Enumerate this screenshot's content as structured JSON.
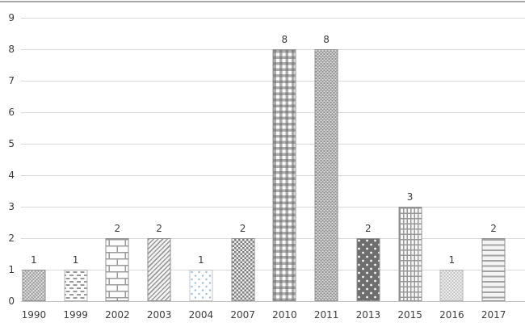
{
  "chart_data": {
    "type": "bar",
    "title": "",
    "xlabel": "",
    "ylabel": "",
    "categories": [
      "1990",
      "1999",
      "2002",
      "2003",
      "2004",
      "2007",
      "2010",
      "2011",
      "2013",
      "2015",
      "2016",
      "2017"
    ],
    "values": [
      1,
      1,
      2,
      2,
      1,
      2,
      8,
      8,
      2,
      3,
      1,
      2
    ],
    "data_labels": [
      "1",
      "1",
      "2",
      "2",
      "1",
      "2",
      "8",
      "8",
      "2",
      "3",
      "1",
      "2"
    ],
    "ylim": [
      0,
      9
    ],
    "yticks": [
      0,
      1,
      2,
      3,
      4,
      5,
      6,
      7,
      8,
      9
    ],
    "ytick_labels": [
      "0",
      "1",
      "2",
      "3",
      "4",
      "5",
      "6",
      "7",
      "8",
      "9"
    ],
    "grid": true,
    "legend": "none",
    "bar_patterns": [
      "medium-fine-weave",
      "horizontal-dashes",
      "brick",
      "diagonal-shingle",
      "sparse-blue-dots",
      "small-checkerboard",
      "woven-plaid",
      "dense-dark-weave",
      "white-dots-on-dark-gray",
      "line-grid-plaid",
      "light-checker-dither",
      "horizontal-stripes"
    ]
  },
  "palette": {
    "background": "#ffffff",
    "top_border": "#a6a6a6",
    "gridline": "#d9d9d9",
    "axis_line": "#bfbfbf",
    "text": "#3d3d3d",
    "pattern_gray": "#9a9a9a",
    "dark_bar_fill": "#6e6e6e",
    "blue_dot": "#9fc0dd"
  }
}
